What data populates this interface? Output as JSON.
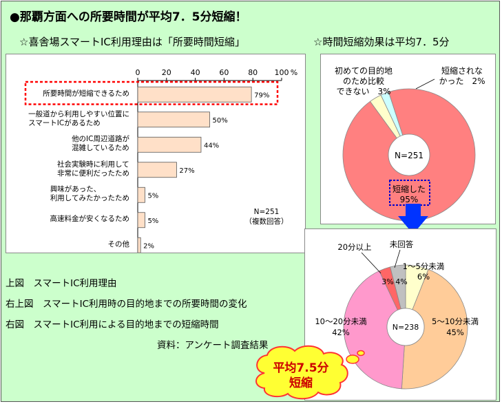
{
  "title": "●那覇方面への所要時間が平均7．5分短縮！",
  "bar_section_title": "☆喜舎場スマートIC利用理由は「所要時間短縮」",
  "pie_section_title": "☆時間短縮効果は平均7．5分",
  "notes": {
    "line1": "上図　スマートIC利用理由",
    "line2": "右上図　スマートIC利用時の目的地までの所要時間の変化",
    "line3": "右図　スマートIC利用による目的地までの短縮時間",
    "source": "資料：アンケート調査結果"
  },
  "callout": {
    "line1": "平均7.5分",
    "line2": "短縮"
  },
  "colors": {
    "background": "#ccffcc",
    "bar_fill": "#ffe0c8",
    "highlight": "#ff0000",
    "arrow": "#0033ff"
  },
  "chart_data": [
    {
      "type": "bar",
      "orientation": "horizontal",
      "categories": [
        "所要時間が短縮できるため",
        "一般道から利用しやすい位置に\nスマートICがあるため",
        "他のIC周辺道路が\n混雑しているため",
        "社会実験時に利用して\n非常に便利だったため",
        "興味があった、\n利用してみたかったため",
        "高速料金が安くなるため",
        "その他"
      ],
      "values": [
        79,
        50,
        44,
        27,
        5,
        5,
        2
      ],
      "value_labels": [
        "79%",
        "50%",
        "44%",
        "27%",
        "5%",
        "5%",
        "2%"
      ],
      "xlim": [
        0,
        100
      ],
      "xticks": [
        "0",
        "20",
        "40",
        "60",
        "80",
        "100"
      ],
      "x_unit": "%",
      "annotation": "N=251\n（複数回答）",
      "highlight_index": 0
    },
    {
      "type": "pie",
      "center_label": "N=251",
      "slices": [
        {
          "label": "短縮した\n95%",
          "value": 95,
          "color": "#ff8080"
        },
        {
          "label": "初めての目的地\nのため比較\nできない　3%",
          "value": 3,
          "color": "#ffffcc"
        },
        {
          "label": "短縮されな\nかった　2%",
          "value": 2,
          "color": "#ccffff"
        }
      ]
    },
    {
      "type": "pie",
      "center_label": "N=238",
      "slices": [
        {
          "label": "1～5分未満\n6%",
          "value": 6,
          "color": "#ffffcc"
        },
        {
          "label": "5～10分未満\n45%",
          "value": 45,
          "color": "#ffcc99"
        },
        {
          "label": "10～20分未満\n42%",
          "value": 42,
          "color": "#ff99cc"
        },
        {
          "label": "20分以上",
          "value": 3,
          "value_label": "3%",
          "color": "#ff6666"
        },
        {
          "label": "未回答",
          "value": 4,
          "value_label": "4%",
          "color": "#c0c0c0"
        }
      ]
    }
  ]
}
